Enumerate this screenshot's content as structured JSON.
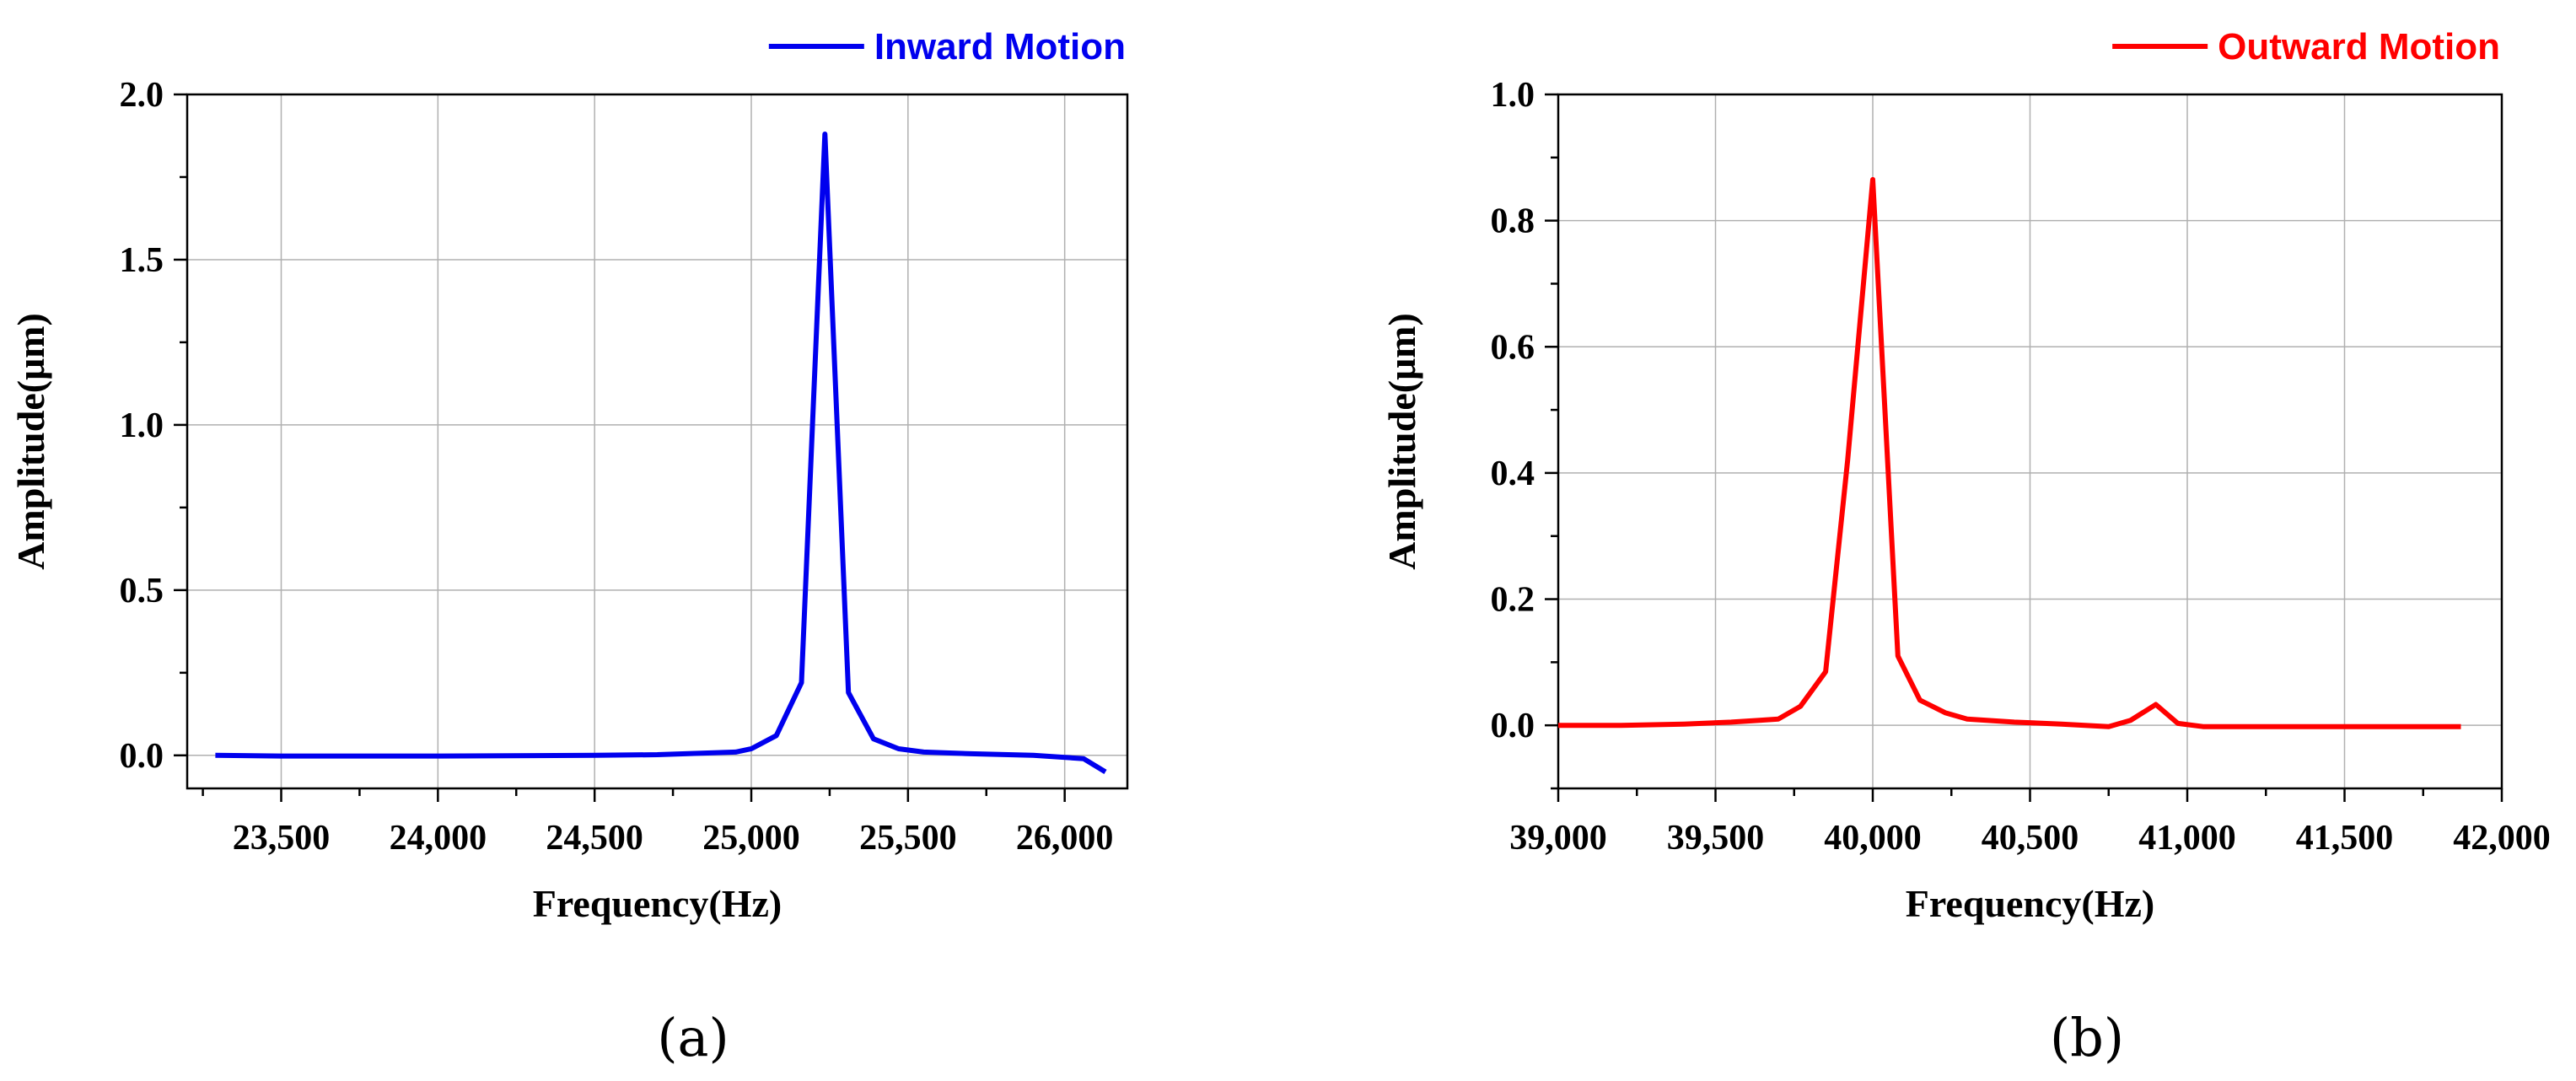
{
  "chart_data": [
    {
      "type": "line",
      "panel": "a",
      "xlabel": "Frequency(Hz)",
      "ylabel": "Amplitude(μm)",
      "xlim": [
        23200,
        26200
      ],
      "ylim": [
        -0.1,
        2.0
      ],
      "xticks": [
        23500,
        24000,
        24500,
        25000,
        25500,
        26000
      ],
      "xtick_labels": [
        "23,500",
        "24,000",
        "24,500",
        "25,000",
        "25,500",
        "26,000"
      ],
      "yticks": [
        0.0,
        0.5,
        1.0,
        1.5,
        2.0
      ],
      "ytick_labels": [
        "0.0",
        "0.5",
        "1.0",
        "1.5",
        "2.0"
      ],
      "grid": true,
      "legend_position": "top-right",
      "series": [
        {
          "name": "Inward Motion",
          "color": "#0000ee",
          "x": [
            23290,
            23500,
            24000,
            24500,
            24700,
            24950,
            25000,
            25080,
            25160,
            25235,
            25310,
            25390,
            25470,
            25550,
            25700,
            25900,
            26060,
            26130
          ],
          "y": [
            0.0,
            -0.002,
            -0.002,
            0.0,
            0.002,
            0.01,
            0.02,
            0.06,
            0.22,
            1.88,
            0.19,
            0.05,
            0.02,
            0.01,
            0.005,
            0.0,
            -0.01,
            -0.05
          ]
        }
      ]
    },
    {
      "type": "line",
      "panel": "b",
      "xlabel": "Frequency(Hz)",
      "ylabel": "Amplitude(μm)",
      "xlim": [
        39000,
        42000
      ],
      "ylim": [
        -0.1,
        1.0
      ],
      "xticks": [
        39000,
        39500,
        40000,
        40500,
        41000,
        41500,
        42000
      ],
      "xtick_labels": [
        "39,000",
        "39,500",
        "40,000",
        "40,500",
        "41,000",
        "41,500",
        "42,000"
      ],
      "yticks": [
        0.0,
        0.2,
        0.4,
        0.6,
        0.8,
        1.0
      ],
      "ytick_labels": [
        "0.0",
        "0.2",
        "0.4",
        "0.6",
        "0.8",
        "1.0"
      ],
      "grid": true,
      "legend_position": "top-right",
      "series": [
        {
          "name": "Outward Motion",
          "color": "#ff0000",
          "x": [
            39000,
            39200,
            39400,
            39550,
            39640,
            39700,
            39770,
            39850,
            39920,
            40000,
            40080,
            40150,
            40230,
            40300,
            40450,
            40600,
            40750,
            40820,
            40900,
            40970,
            41050,
            41300,
            41600,
            41870
          ],
          "y": [
            0.0,
            0.0,
            0.002,
            0.005,
            0.008,
            0.01,
            0.03,
            0.085,
            0.42,
            0.865,
            0.11,
            0.04,
            0.02,
            0.01,
            0.005,
            0.002,
            -0.002,
            0.008,
            0.033,
            0.003,
            -0.002,
            -0.002,
            -0.002,
            -0.002
          ]
        }
      ]
    }
  ],
  "panel_labels": [
    "(a)",
    "(b)"
  ]
}
